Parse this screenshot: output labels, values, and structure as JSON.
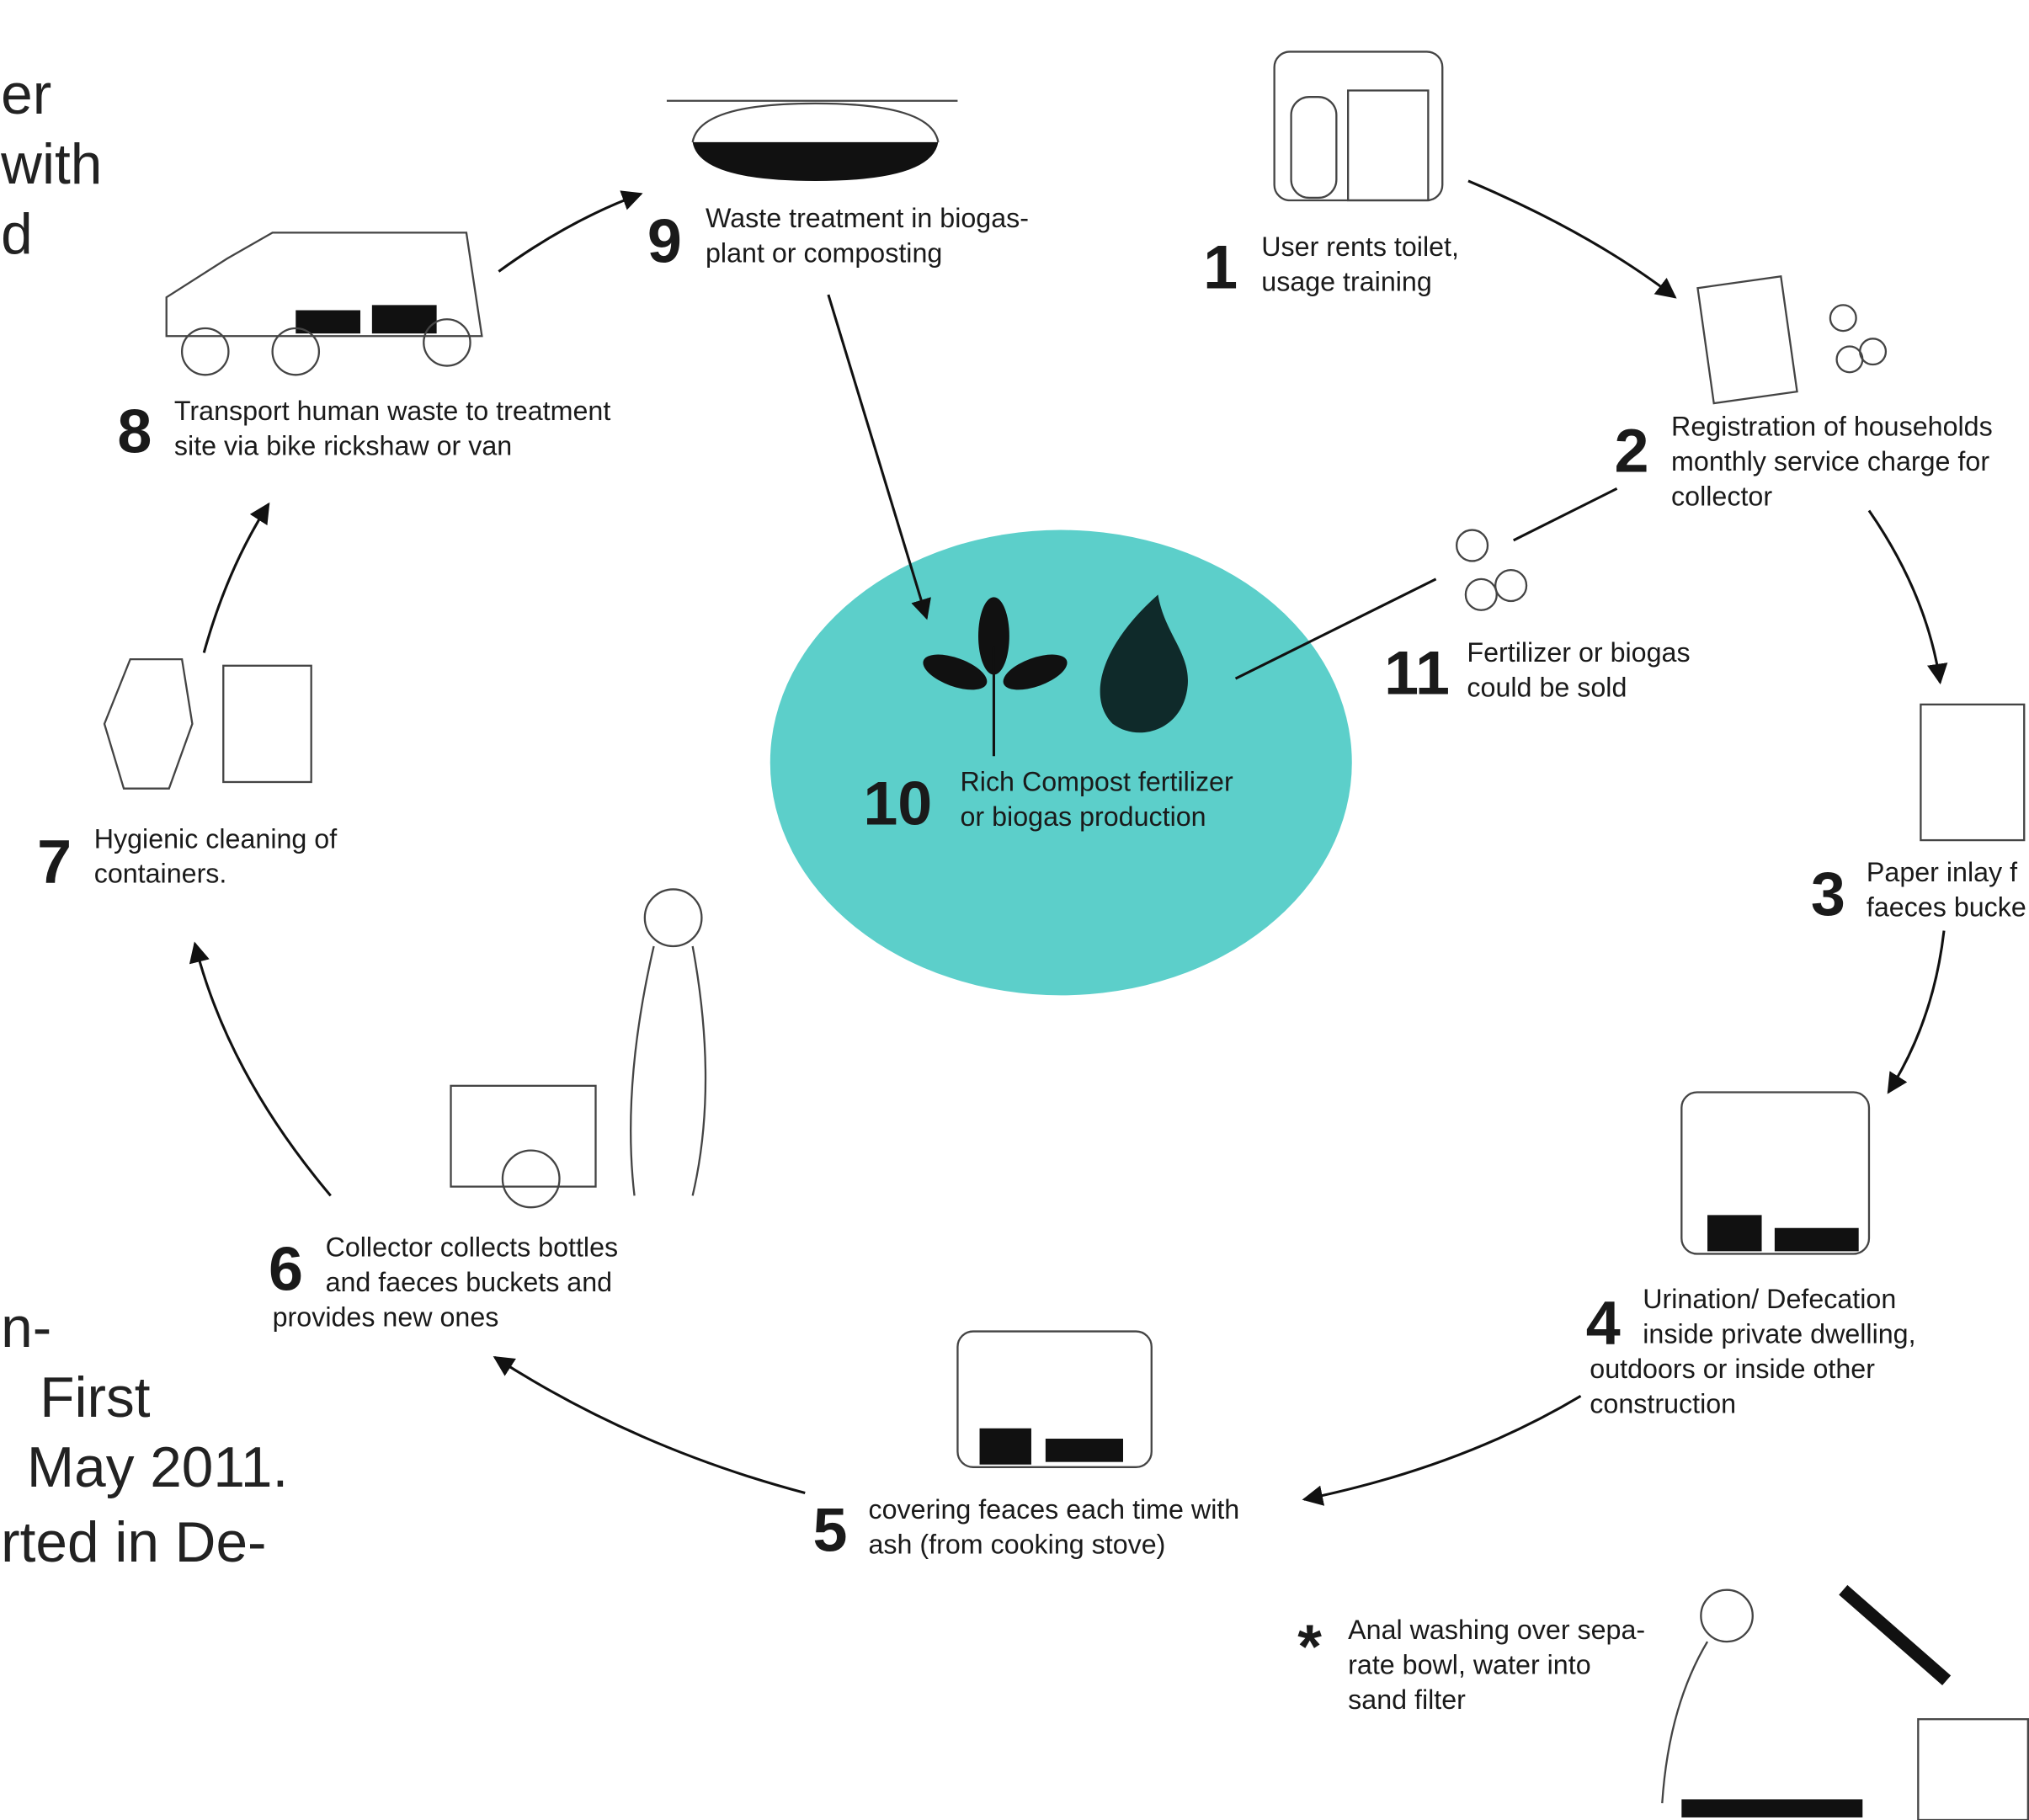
{
  "left_text": {
    "top": [
      "er",
      "with",
      "d"
    ],
    "bottom": [
      "n-",
      "First",
      "May 2011.",
      "rted in De-"
    ]
  },
  "steps": [
    {
      "number": "1",
      "lines": [
        "User rents toilet,",
        "usage training"
      ]
    },
    {
      "number": "2",
      "lines": [
        "Registration of households",
        "monthly service charge for",
        "collector"
      ]
    },
    {
      "number": "3",
      "lines": [
        "Paper inlay f",
        "faeces bucke"
      ]
    },
    {
      "number": "4",
      "lines": [
        "Urination/ Defecation",
        "inside private dwelling,",
        "outdoors or inside other",
        "construction"
      ]
    },
    {
      "number": "5",
      "lines": [
        "covering feaces each time with",
        "ash  (from cooking stove)"
      ]
    },
    {
      "number": "6",
      "lines": [
        "Collector collects bottles",
        "and faeces buckets and",
        "provides new ones"
      ]
    },
    {
      "number": "7",
      "lines": [
        "Hygienic cleaning of",
        "containers."
      ]
    },
    {
      "number": "8",
      "lines": [
        "Transport human waste to treatment",
        "site via bike rickshaw or van"
      ]
    },
    {
      "number": "9",
      "lines": [
        "Waste treatment in biogas-",
        "plant or composting"
      ]
    },
    {
      "number": "10",
      "lines": [
        "Rich Compost fertilizer",
        "or biogas production"
      ]
    },
    {
      "number": "11",
      "lines": [
        "Fertilizer or biogas",
        "could be sold"
      ]
    }
  ],
  "note": {
    "symbol": "*",
    "lines": [
      "Anal washing over sepa-",
      "rate bowl, water into",
      "sand filter"
    ]
  }
}
